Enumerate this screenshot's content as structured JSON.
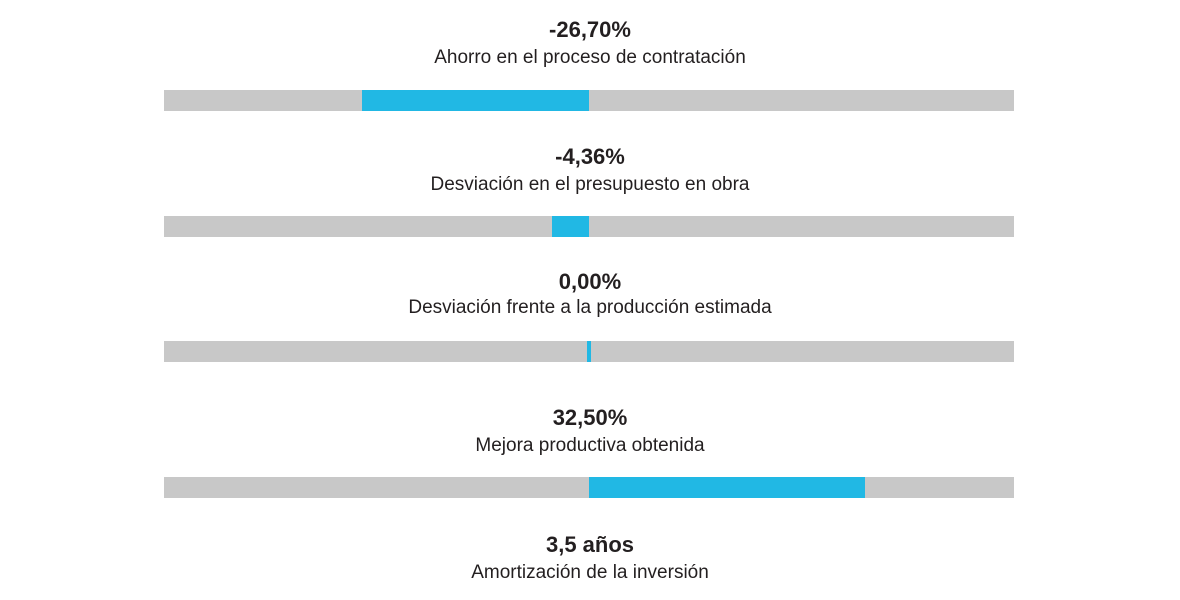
{
  "fill_color": "#21b8e4",
  "track_color": "#c8c8c8",
  "chart_data": {
    "type": "bar",
    "orientation": "horizontal",
    "xlim": [
      -50,
      50
    ],
    "metrics": [
      {
        "value_label": "-26,70%",
        "label": "Ahorro en el proceso de contratación",
        "value": -26.7
      },
      {
        "value_label": "-4,36%",
        "label": "Desviación en el presupuesto en obra",
        "value": -4.36
      },
      {
        "value_label": "0,00%",
        "label": "Desviación frente a la producción estimada",
        "value": 0.0
      },
      {
        "value_label": "32,50%",
        "label": "Mejora productiva obtenida",
        "value": 32.5
      },
      {
        "value_label": "3,5 años",
        "label": "Amortización de la inversión"
      }
    ]
  }
}
